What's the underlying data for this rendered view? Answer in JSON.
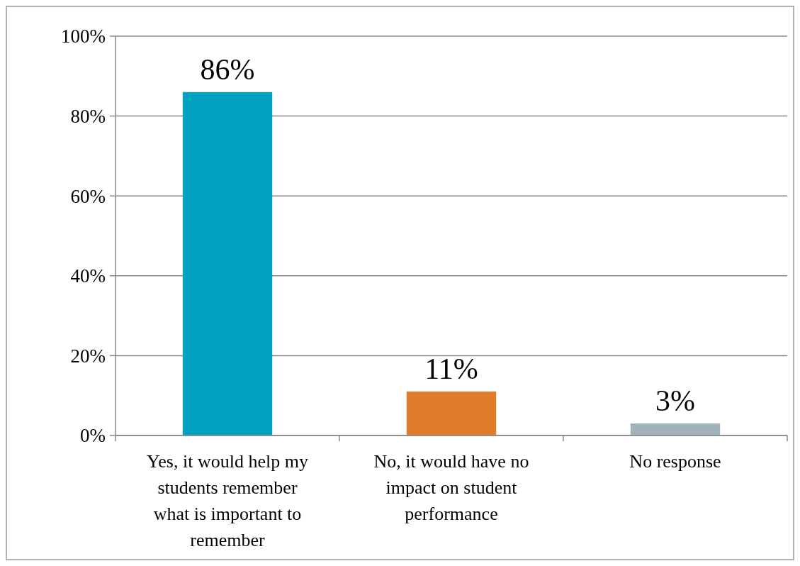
{
  "chart_data": {
    "type": "bar",
    "categories": [
      "Yes, it would help my students remember what is important to remember",
      "No, it would have no impact on student performance",
      "No response"
    ],
    "values": [
      86,
      11,
      3
    ],
    "colors": [
      "#00a2c0",
      "#e07b2a",
      "#a1b2bd"
    ],
    "value_labels": [
      "86%",
      "11%",
      "3%"
    ],
    "ylim": [
      0,
      100
    ],
    "yticks": [
      {
        "value": 0,
        "label": "0%"
      },
      {
        "value": 20,
        "label": "20%"
      },
      {
        "value": 40,
        "label": "40%"
      },
      {
        "value": 60,
        "label": "60%"
      },
      {
        "value": 80,
        "label": "80%"
      },
      {
        "value": 100,
        "label": "100%"
      }
    ],
    "grid": "y"
  }
}
